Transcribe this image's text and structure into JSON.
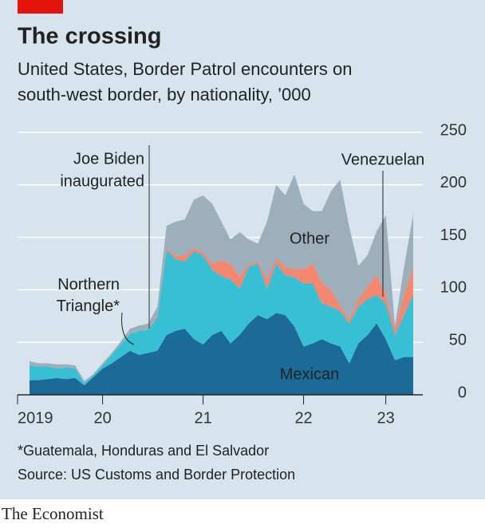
{
  "chart_data": {
    "type": "stacked_area",
    "title": "The crossing",
    "subtitle": [
      "United States, Border Patrol encounters on",
      "south-west border, by nationality, ’000"
    ],
    "categories": [
      "2019",
      null,
      null,
      null,
      null,
      null,
      null,
      null,
      "20",
      null,
      null,
      null,
      null,
      null,
      null,
      null,
      null,
      null,
      null,
      "21",
      null,
      null,
      null,
      null,
      null,
      null,
      null,
      null,
      null,
      null,
      "22",
      null,
      null,
      null,
      null,
      null,
      null,
      null,
      null,
      "23",
      null,
      null,
      null
    ],
    "series": [
      {
        "name": "Mexican",
        "color": "#1b6a98",
        "values": [
          14,
          14,
          15,
          16,
          15,
          16,
          9,
          17,
          25,
          30,
          36,
          42,
          38,
          40,
          42,
          57,
          61,
          63,
          53,
          48,
          57,
          61,
          49,
          57,
          68,
          76,
          72,
          78,
          76,
          65,
          46,
          49,
          53,
          49,
          46,
          30,
          49,
          57,
          68,
          53,
          33,
          36,
          36
        ]
      },
      {
        "name": "Northern Triangle*",
        "color": "#37c0d3",
        "values": [
          14,
          13,
          12,
          9,
          11,
          9,
          2,
          2,
          3,
          8,
          12,
          16,
          23,
          22,
          32,
          81,
          68,
          64,
          84,
          85,
          62,
          52,
          61,
          44,
          54,
          49,
          29,
          47,
          38,
          47,
          60,
          57,
          34,
          35,
          34,
          38,
          35,
          34,
          27,
          34,
          24,
          40,
          59
        ]
      },
      {
        "name": "Venezuelan",
        "color": "#f3876f",
        "values": [
          0,
          0,
          0,
          0,
          0,
          0,
          0,
          0,
          0,
          0,
          0,
          0,
          0,
          0,
          1,
          2,
          3,
          6,
          3,
          3,
          6,
          15,
          15,
          12,
          2,
          2,
          9,
          5,
          8,
          8,
          14,
          19,
          20,
          16,
          5,
          4,
          7,
          12,
          19,
          8,
          6,
          19,
          27
        ]
      },
      {
        "name": "Other",
        "color": "#9eafbc",
        "values": [
          4,
          3,
          3,
          4,
          3,
          3,
          2,
          1,
          2,
          2,
          3,
          5,
          5,
          6,
          9,
          21,
          33,
          34,
          46,
          54,
          57,
          37,
          23,
          42,
          24,
          17,
          55,
          70,
          68,
          90,
          62,
          50,
          68,
          94,
          120,
          88,
          32,
          30,
          42,
          76,
          3,
          27,
          50
        ]
      }
    ],
    "ylim": [
      0,
      250
    ],
    "yticks": [
      0,
      50,
      100,
      150,
      200,
      250
    ],
    "grid": true,
    "annotation": [
      "Joe Biden",
      "inaugurated"
    ],
    "footnote": "*Guatemala, Honduras and El Salvador",
    "source": "Source: US Customs and Border Protection",
    "brand": "The Economist"
  }
}
